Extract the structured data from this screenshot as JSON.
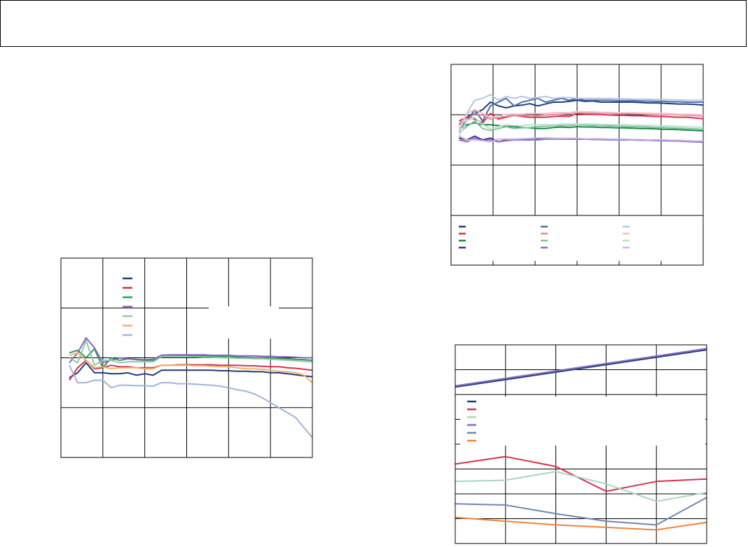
{
  "header": {
    "title": ""
  },
  "chart_data": [
    {
      "id": "chart-left",
      "type": "line",
      "title": "",
      "xlabel": "",
      "ylabel": "",
      "xlim": [
        0,
        30
      ],
      "ylim": [
        0,
        4
      ],
      "grid": true,
      "legend_position": "top-center",
      "x": [
        1,
        2,
        3,
        4,
        5,
        6,
        7,
        8,
        9,
        10,
        11,
        12,
        13,
        14,
        15,
        16,
        17,
        18,
        19,
        20,
        21,
        22,
        23,
        24,
        25,
        26,
        27,
        28,
        29,
        30
      ],
      "series": [
        {
          "color": "#1f3d7a",
          "values": [
            1.6,
            1.7,
            1.9,
            1.7,
            1.7,
            1.68,
            1.68,
            1.7,
            1.65,
            1.68,
            1.65,
            1.75,
            1.75,
            1.75,
            1.75,
            1.75,
            1.75,
            1.75,
            1.74,
            1.74,
            1.73,
            1.73,
            1.72,
            1.72,
            1.7,
            1.7,
            1.68,
            1.66,
            1.64,
            1.62
          ]
        },
        {
          "color": "#d9304f",
          "values": [
            1.55,
            1.8,
            1.95,
            1.78,
            1.8,
            1.85,
            1.82,
            1.82,
            1.8,
            1.8,
            1.8,
            1.85,
            1.85,
            1.86,
            1.86,
            1.86,
            1.86,
            1.86,
            1.85,
            1.85,
            1.85,
            1.84,
            1.84,
            1.83,
            1.82,
            1.82,
            1.8,
            1.79,
            1.77,
            1.75
          ]
        },
        {
          "color": "#2e9a5c",
          "values": [
            2.1,
            2.15,
            2.0,
            2.18,
            1.8,
            2.0,
            1.95,
            1.98,
            1.96,
            1.95,
            1.95,
            2.05,
            2.05,
            2.05,
            2.05,
            2.04,
            2.04,
            2.03,
            2.03,
            2.02,
            2.02,
            2.01,
            2.0,
            2.0,
            2.0,
            1.99,
            1.98,
            1.97,
            1.96,
            1.95
          ]
        },
        {
          "color": "#8a63c4",
          "values": [
            1.9,
            2.1,
            2.4,
            2.2,
            1.9,
            1.95,
            2.0,
            1.98,
            1.97,
            1.96,
            1.97,
            2.05,
            2.06,
            2.06,
            2.06,
            2.06,
            2.06,
            2.05,
            2.05,
            2.05,
            2.04,
            2.04,
            2.04,
            2.03,
            2.03,
            2.02,
            2.02,
            2.01,
            2.0,
            2.0
          ]
        },
        {
          "color": "#8fc9a8",
          "values": [
            2.0,
            1.9,
            2.35,
            1.85,
            1.95,
            1.95,
            1.9,
            1.92,
            1.92,
            1.92,
            1.92,
            2.02,
            2.02,
            2.02,
            2.02,
            2.02,
            2.01,
            2.01,
            2.0,
            2.0,
            1.99,
            1.99,
            1.98,
            1.98,
            1.97,
            1.96,
            1.95,
            1.94,
            1.93,
            1.92
          ]
        },
        {
          "color": "#f0b36e",
          "values": [
            2.05,
            2.1,
            1.95,
            1.8,
            1.82,
            1.78,
            1.8,
            1.8,
            1.8,
            1.78,
            1.78,
            1.85,
            1.85,
            1.85,
            1.85,
            1.84,
            1.84,
            1.83,
            1.82,
            1.82,
            1.8,
            1.78,
            1.78,
            1.77,
            1.75,
            1.73,
            1.72,
            1.7,
            1.65,
            1.5
          ]
        },
        {
          "color": "#a3b3d9",
          "values": [
            1.85,
            1.5,
            1.5,
            1.55,
            1.55,
            1.4,
            1.45,
            1.45,
            1.44,
            1.44,
            1.43,
            1.5,
            1.5,
            1.48,
            1.48,
            1.47,
            1.46,
            1.45,
            1.43,
            1.4,
            1.36,
            1.33,
            1.28,
            1.2,
            1.1,
            1.0,
            0.9,
            0.8,
            0.6,
            0.4
          ]
        }
      ]
    },
    {
      "id": "chart-top-right",
      "type": "line",
      "title": "",
      "xlabel": "",
      "ylabel": "",
      "xlim": [
        0,
        32
      ],
      "ylim": [
        0,
        4
      ],
      "grid": true,
      "legend_position": "bottom",
      "x": [
        1,
        2,
        3,
        4,
        5,
        6,
        7,
        8,
        9,
        10,
        11,
        12,
        13,
        14,
        15,
        16,
        17,
        18,
        19,
        20,
        21,
        22,
        23,
        24,
        25,
        26,
        27,
        28,
        29,
        30,
        31,
        32
      ],
      "series": [
        {
          "color": "#1f3d7a",
          "values": [
            2.4,
            2.6,
            2.7,
            2.8,
            3.0,
            2.9,
            2.85,
            2.9,
            2.92,
            2.96,
            2.9,
            2.95,
            3.0,
            3.0,
            3.02,
            3.05,
            3.02,
            3.03,
            3.0,
            3.0,
            3.0,
            3.0,
            3.0,
            2.99,
            2.98,
            2.98,
            2.97,
            2.96,
            2.95,
            2.95,
            2.94,
            2.92
          ]
        },
        {
          "color": "#d9304f",
          "values": [
            2.5,
            2.6,
            2.55,
            2.45,
            2.7,
            2.55,
            2.6,
            2.65,
            2.62,
            2.6,
            2.6,
            2.6,
            2.62,
            2.63,
            2.62,
            2.7,
            2.68,
            2.68,
            2.67,
            2.66,
            2.65,
            2.65,
            2.64,
            2.64,
            2.63,
            2.62,
            2.62,
            2.61,
            2.6,
            2.6,
            2.58,
            2.56
          ]
        },
        {
          "color": "#188a44",
          "values": [
            2.3,
            2.4,
            2.45,
            2.4,
            2.4,
            2.38,
            2.36,
            2.35,
            2.33,
            2.32,
            2.3,
            2.3,
            2.33,
            2.34,
            2.33,
            2.35,
            2.34,
            2.34,
            2.33,
            2.33,
            2.32,
            2.32,
            2.31,
            2.3,
            2.3,
            2.29,
            2.28,
            2.28,
            2.27,
            2.26,
            2.25,
            2.24
          ]
        },
        {
          "color": "#4a2d8f",
          "values": [
            2.05,
            2.0,
            2.1,
            2.0,
            2.05,
            1.95,
            2.0,
            2.02,
            2.0,
            2.0,
            2.02,
            2.05,
            2.04,
            2.03,
            2.02,
            2.02,
            2.02,
            2.02,
            2.01,
            2.01,
            2.0,
            2.0,
            2.0,
            2.0,
            1.99,
            1.99,
            1.98,
            1.98,
            1.97,
            1.96,
            1.95,
            1.94
          ]
        },
        {
          "color": "#4a6fa8",
          "values": [
            2.3,
            2.5,
            2.8,
            2.5,
            2.9,
            3.0,
            3.1,
            2.9,
            3.0,
            3.05,
            3.1,
            3.0,
            3.05,
            3.1,
            3.05,
            3.1,
            3.05,
            3.05,
            3.05,
            3.05,
            3.04,
            3.04,
            3.04,
            3.03,
            3.03,
            3.02,
            3.02,
            3.01,
            3.01,
            3.0,
            3.0,
            3.0
          ]
        },
        {
          "color": "#e88a9e",
          "values": [
            2.4,
            2.5,
            2.7,
            2.65,
            2.55,
            2.6,
            2.62,
            2.64,
            2.64,
            2.65,
            2.64,
            2.66,
            2.67,
            2.68,
            2.7,
            2.73,
            2.72,
            2.72,
            2.71,
            2.71,
            2.7,
            2.7,
            2.69,
            2.69,
            2.68,
            2.68,
            2.67,
            2.67,
            2.66,
            2.65,
            2.64,
            2.63
          ]
        },
        {
          "color": "#7fc4a0",
          "values": [
            2.2,
            2.35,
            2.5,
            2.3,
            2.25,
            2.3,
            2.35,
            2.3,
            2.32,
            2.33,
            2.35,
            2.36,
            2.38,
            2.38,
            2.38,
            2.4,
            2.39,
            2.38,
            2.38,
            2.37,
            2.37,
            2.36,
            2.35,
            2.35,
            2.34,
            2.33,
            2.33,
            2.32,
            2.31,
            2.3,
            2.29,
            2.28
          ]
        },
        {
          "color": "#8a6fc4",
          "values": [
            2.0,
            1.95,
            2.05,
            1.98,
            2.0,
            1.95,
            1.98,
            2.0,
            2.0,
            2.01,
            2.0,
            2.02,
            2.02,
            2.02,
            2.02,
            2.02,
            2.02,
            2.01,
            2.01,
            2.0,
            2.0,
            2.0,
            2.0,
            1.99,
            1.99,
            1.98,
            1.98,
            1.97,
            1.97,
            1.96,
            1.95,
            1.95
          ]
        },
        {
          "color": "#b7c6e6",
          "values": [
            2.2,
            2.7,
            3.05,
            3.1,
            3.2,
            3.05,
            3.15,
            3.1,
            3.15,
            3.1,
            3.12,
            3.15,
            3.1,
            3.12,
            3.12,
            3.1,
            3.1,
            3.1,
            3.1,
            3.1,
            3.09,
            3.09,
            3.08,
            3.08,
            3.08,
            3.07,
            3.07,
            3.06,
            3.06,
            3.05,
            3.05,
            3.05
          ]
        },
        {
          "color": "#f5c1cc",
          "values": [
            2.3,
            2.7,
            2.8,
            2.7,
            2.6,
            2.62,
            2.68,
            2.68,
            2.68,
            2.7,
            2.7,
            2.7,
            2.72,
            2.72,
            2.72,
            2.75,
            2.74,
            2.74,
            2.73,
            2.73,
            2.72,
            2.72,
            2.72,
            2.71,
            2.71,
            2.7,
            2.7,
            2.69,
            2.68,
            2.68,
            2.67,
            2.66
          ]
        },
        {
          "color": "#bfe2cf",
          "values": [
            2.1,
            2.5,
            2.6,
            2.4,
            2.3,
            2.35,
            2.4,
            2.38,
            2.38,
            2.4,
            2.4,
            2.4,
            2.4,
            2.42,
            2.42,
            2.42,
            2.42,
            2.42,
            2.41,
            2.41,
            2.4,
            2.4,
            2.39,
            2.39,
            2.38,
            2.38,
            2.37,
            2.37,
            2.36,
            2.35,
            2.34,
            2.33
          ]
        },
        {
          "color": "#c7b6e6",
          "values": [
            2.1,
            2.0,
            2.0,
            1.98,
            1.95,
            2.02,
            2.02,
            2.02,
            2.03,
            2.04,
            2.05,
            2.05,
            2.04,
            2.04,
            2.04,
            2.04,
            2.03,
            2.03,
            2.03,
            2.02,
            2.02,
            2.02,
            2.01,
            2.01,
            2.0,
            2.0,
            2.0,
            1.99,
            1.99,
            1.98,
            1.97,
            1.97
          ]
        }
      ]
    },
    {
      "id": "chart-bottom-right",
      "type": "line",
      "title": "",
      "xlabel": "",
      "ylabel": "",
      "xlim": [
        0,
        5
      ],
      "ylim": [
        0,
        8
      ],
      "grid": true,
      "legend_position": "middle-left",
      "x": [
        0,
        1,
        2,
        3,
        4,
        5
      ],
      "series": [
        {
          "color": "#1f3d7a",
          "values": [
            6.3,
            6.6,
            6.9,
            7.2,
            7.5,
            7.8
          ]
        },
        {
          "color": "#d9304f",
          "values": [
            3.2,
            3.5,
            3.1,
            2.1,
            2.5,
            2.6
          ]
        },
        {
          "color": "#a8d6c0",
          "values": [
            2.5,
            2.55,
            2.9,
            2.4,
            1.7,
            2.05
          ]
        },
        {
          "color": "#8a6fc4",
          "values": [
            6.35,
            6.65,
            6.95,
            7.25,
            7.55,
            7.85
          ]
        },
        {
          "color": "#6f86b5",
          "values": [
            1.6,
            1.55,
            1.2,
            0.9,
            0.75,
            1.85
          ]
        },
        {
          "color": "#f5813a",
          "values": [
            1.05,
            0.9,
            0.75,
            0.65,
            0.55,
            0.85
          ]
        }
      ]
    }
  ]
}
